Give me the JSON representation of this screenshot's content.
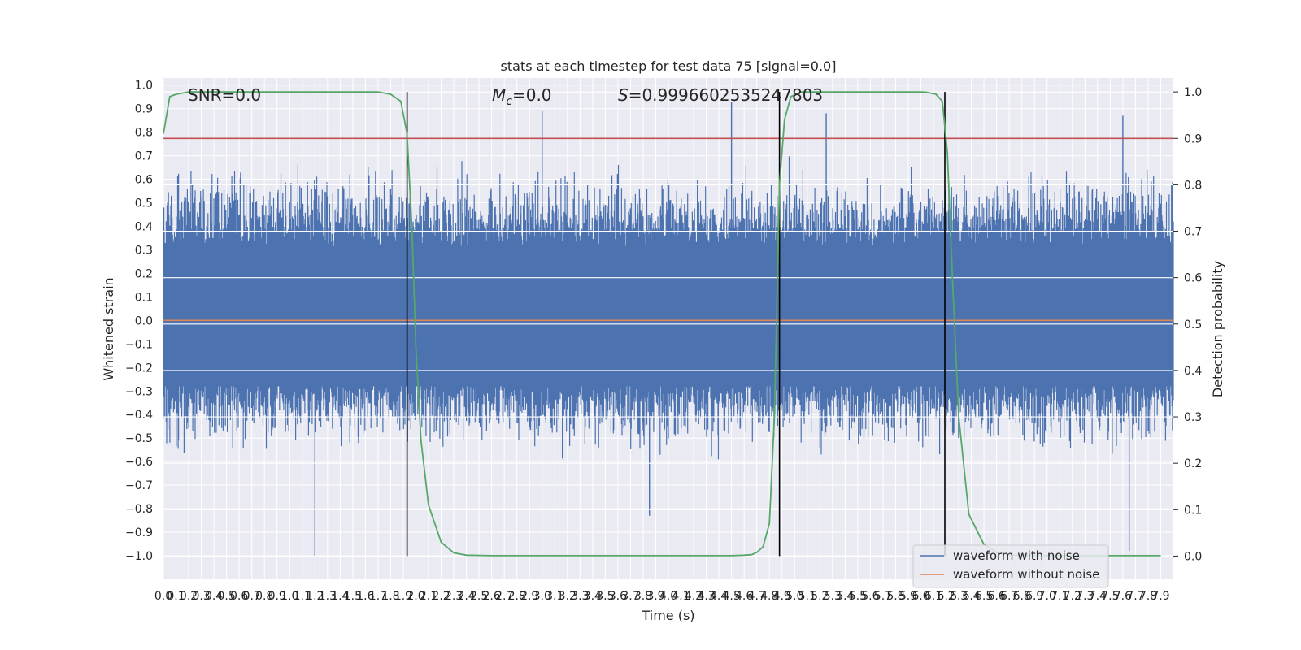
{
  "chart_data": {
    "type": "line",
    "title": "stats at each timestep for test data 75 [signal=0.0]",
    "xlabel": "Time (s)",
    "ylabel_left": "Whitened strain",
    "ylabel_right": "Detection probability",
    "xlim": [
      0.0,
      8.0
    ],
    "ylim_left": [
      -1.1,
      1.03
    ],
    "ylim_right": [
      -0.05,
      1.03
    ],
    "x_ticks": [
      "0.0",
      "0.1",
      "0.2",
      "0.3",
      "0.4",
      "0.5",
      "0.6",
      "0.7",
      "0.8",
      "0.9",
      "1.0",
      "1.1",
      "1.2",
      "1.3",
      "1.4",
      "1.5",
      "1.6",
      "1.7",
      "1.8",
      "1.9",
      "2.0",
      "2.1",
      "2.2",
      "2.3",
      "2.4",
      "2.5",
      "2.6",
      "2.7",
      "2.8",
      "2.9",
      "3.0",
      "3.1",
      "3.2",
      "3.3",
      "3.4",
      "3.5",
      "3.6",
      "3.7",
      "3.8",
      "3.9",
      "4.0",
      "4.1",
      "4.2",
      "4.3",
      "4.4",
      "4.5",
      "4.6",
      "4.7",
      "4.8",
      "4.9",
      "5.0",
      "5.1",
      "5.2",
      "5.3",
      "5.4",
      "5.5",
      "5.6",
      "5.7",
      "5.8",
      "5.9",
      "6.0",
      "6.1",
      "6.2",
      "6.3",
      "6.4",
      "6.5",
      "6.6",
      "6.7",
      "6.8",
      "6.9",
      "7.0",
      "7.1",
      "7.2",
      "7.3",
      "7.4",
      "7.5",
      "7.6",
      "7.7",
      "7.8",
      "7.9"
    ],
    "y_ticks_left": [
      "1.0",
      "0.9",
      "0.8",
      "0.7",
      "0.6",
      "0.5",
      "0.4",
      "0.3",
      "0.2",
      "0.1",
      "0.0",
      "−0.1",
      "−0.2",
      "−0.3",
      "−0.4",
      "−0.5",
      "−0.6",
      "−0.7",
      "−0.8",
      "−0.9",
      "−1.0"
    ],
    "y_ticks_right": [
      "1.0",
      "0.9",
      "0.8",
      "0.7",
      "0.6",
      "0.5",
      "0.4",
      "0.3",
      "0.2",
      "0.1",
      "0.0"
    ],
    "annotations": {
      "snr": "SNR=0.0",
      "mc_symbol": "M",
      "mc_sub": "c",
      "mc_value": "=0.0",
      "s_symbol": "S",
      "s_value": "=0.9996602535247803"
    },
    "threshold": {
      "value": 0.9,
      "axis": "right",
      "color": "#c44e52"
    },
    "vertical_markers": [
      1.93,
      4.88,
      6.19
    ],
    "series": [
      {
        "name": "waveform with noise",
        "color": "#4c72b0",
        "axis": "left",
        "kind": "noise",
        "amplitude_band": [
          -0.42,
          0.52
        ],
        "peak_min": -1.0,
        "peak_max": 0.93
      },
      {
        "name": "waveform without noise",
        "color": "#dd8452",
        "axis": "left",
        "value": 0.0
      },
      {
        "name": "Detection probability",
        "color": "#55a868",
        "axis": "right",
        "x": [
          0.0,
          0.05,
          0.1,
          0.2,
          0.3,
          0.5,
          0.8,
          1.0,
          1.3,
          1.5,
          1.7,
          1.8,
          1.88,
          1.93,
          1.97,
          2.0,
          2.04,
          2.1,
          2.2,
          2.3,
          2.4,
          2.6,
          3.0,
          3.5,
          4.0,
          4.3,
          4.5,
          4.6,
          4.66,
          4.7,
          4.75,
          4.8,
          4.84,
          4.88,
          4.92,
          4.97,
          5.05,
          5.2,
          5.5,
          6.0,
          6.05,
          6.12,
          6.17,
          6.21,
          6.25,
          6.3,
          6.38,
          6.5,
          6.6,
          6.75,
          7.0,
          7.5,
          7.9
        ],
        "y": [
          0.91,
          0.99,
          0.995,
          1.0,
          1.0,
          1.0,
          1.0,
          1.0,
          1.0,
          1.0,
          1.0,
          0.995,
          0.98,
          0.91,
          0.7,
          0.45,
          0.25,
          0.11,
          0.03,
          0.007,
          0.002,
          0.001,
          0.001,
          0.001,
          0.001,
          0.001,
          0.001,
          0.002,
          0.003,
          0.008,
          0.02,
          0.07,
          0.3,
          0.8,
          0.94,
          0.99,
          1.0,
          1.0,
          1.0,
          1.0,
          0.999,
          0.995,
          0.98,
          0.87,
          0.6,
          0.3,
          0.09,
          0.025,
          0.008,
          0.002,
          0.001,
          0.001,
          0.001
        ]
      }
    ],
    "legend": {
      "location": "lower-right",
      "entries": [
        {
          "label": "waveform with noise",
          "color": "#4c72b0"
        },
        {
          "label": "waveform without noise",
          "color": "#dd8452"
        }
      ]
    },
    "style": {
      "background": "#eaeaf2",
      "grid": "#ffffff",
      "marker_color": "#000000"
    }
  }
}
